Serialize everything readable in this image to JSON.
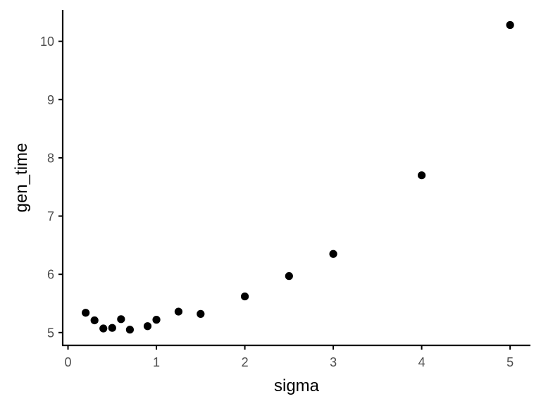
{
  "chart_data": {
    "type": "scatter",
    "title": "",
    "xlabel": "sigma",
    "ylabel": "gen_time",
    "xlim": [
      -0.06,
      5.23
    ],
    "ylim": [
      4.78,
      10.54
    ],
    "x_ticks": [
      0,
      1,
      2,
      3,
      4,
      5
    ],
    "y_ticks": [
      5,
      6,
      7,
      8,
      9,
      10
    ],
    "grid": false,
    "point_color": "#000000",
    "series": [
      {
        "x": [
          0.2,
          0.3,
          0.4,
          0.5,
          0.6,
          0.7,
          0.9,
          1.0,
          1.25,
          1.5,
          2.0,
          2.5,
          3.0,
          4.0,
          5.0
        ],
        "y": [
          5.34,
          5.21,
          5.07,
          5.08,
          5.23,
          5.05,
          5.11,
          5.22,
          5.36,
          5.32,
          5.62,
          5.97,
          6.35,
          7.7,
          10.28
        ]
      }
    ]
  }
}
